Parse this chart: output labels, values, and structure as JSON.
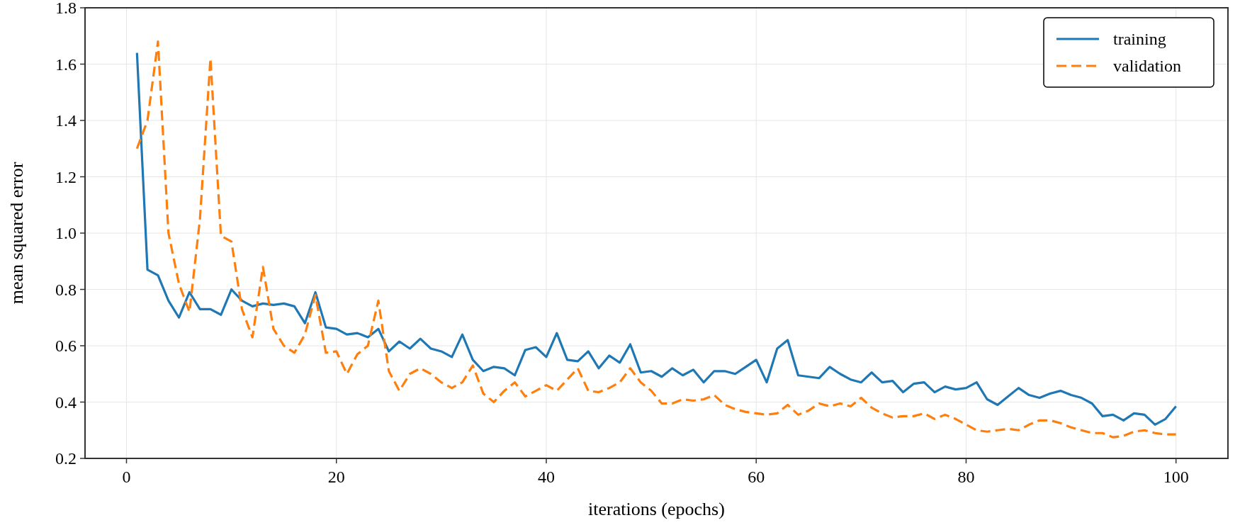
{
  "chart_data": {
    "type": "line",
    "xlabel": "iterations (epochs)",
    "ylabel": "mean squared error",
    "x": [
      1,
      2,
      3,
      4,
      5,
      6,
      7,
      8,
      9,
      10,
      11,
      12,
      13,
      14,
      15,
      16,
      17,
      18,
      19,
      20,
      21,
      22,
      23,
      24,
      25,
      26,
      27,
      28,
      29,
      30,
      31,
      32,
      33,
      34,
      35,
      36,
      37,
      38,
      39,
      40,
      41,
      42,
      43,
      44,
      45,
      46,
      47,
      48,
      49,
      50,
      51,
      52,
      53,
      54,
      55,
      56,
      57,
      58,
      59,
      60,
      61,
      62,
      63,
      64,
      65,
      66,
      67,
      68,
      69,
      70,
      71,
      72,
      73,
      74,
      75,
      76,
      77,
      78,
      79,
      80,
      81,
      82,
      83,
      84,
      85,
      86,
      87,
      88,
      89,
      90,
      91,
      92,
      93,
      94,
      95,
      96,
      97,
      98,
      99,
      100
    ],
    "series": [
      {
        "name": "training",
        "color": "#1f77b4",
        "line_style": "solid",
        "values": [
          1.64,
          0.87,
          0.85,
          0.76,
          0.7,
          0.79,
          0.73,
          0.73,
          0.71,
          0.8,
          0.76,
          0.74,
          0.75,
          0.745,
          0.75,
          0.74,
          0.68,
          0.79,
          0.665,
          0.66,
          0.64,
          0.645,
          0.63,
          0.66,
          0.58,
          0.615,
          0.59,
          0.625,
          0.59,
          0.58,
          0.56,
          0.64,
          0.55,
          0.51,
          0.525,
          0.52,
          0.495,
          0.585,
          0.595,
          0.56,
          0.645,
          0.55,
          0.545,
          0.58,
          0.52,
          0.565,
          0.54,
          0.605,
          0.505,
          0.51,
          0.49,
          0.52,
          0.495,
          0.515,
          0.47,
          0.51,
          0.51,
          0.5,
          0.525,
          0.55,
          0.47,
          0.59,
          0.62,
          0.495,
          0.49,
          0.485,
          0.525,
          0.5,
          0.48,
          0.47,
          0.505,
          0.47,
          0.475,
          0.435,
          0.465,
          0.47,
          0.435,
          0.455,
          0.445,
          0.45,
          0.47,
          0.41,
          0.39,
          0.42,
          0.45,
          0.425,
          0.415,
          0.43,
          0.44,
          0.425,
          0.415,
          0.395,
          0.35,
          0.355,
          0.335,
          0.36,
          0.355,
          0.32,
          0.34,
          0.385
        ]
      },
      {
        "name": "validation",
        "color": "#ff7f0e",
        "line_style": "dashed",
        "values": [
          1.3,
          1.4,
          1.68,
          1.0,
          0.82,
          0.72,
          1.05,
          1.62,
          0.99,
          0.97,
          0.73,
          0.63,
          0.88,
          0.66,
          0.6,
          0.575,
          0.64,
          0.78,
          0.575,
          0.58,
          0.5,
          0.57,
          0.6,
          0.76,
          0.51,
          0.44,
          0.5,
          0.52,
          0.5,
          0.47,
          0.45,
          0.47,
          0.53,
          0.43,
          0.4,
          0.44,
          0.47,
          0.42,
          0.44,
          0.46,
          0.44,
          0.48,
          0.52,
          0.44,
          0.435,
          0.45,
          0.47,
          0.52,
          0.47,
          0.44,
          0.395,
          0.395,
          0.41,
          0.405,
          0.41,
          0.425,
          0.39,
          0.375,
          0.365,
          0.36,
          0.355,
          0.36,
          0.39,
          0.355,
          0.37,
          0.395,
          0.385,
          0.395,
          0.385,
          0.415,
          0.38,
          0.36,
          0.345,
          0.35,
          0.35,
          0.36,
          0.34,
          0.355,
          0.34,
          0.32,
          0.3,
          0.295,
          0.3,
          0.305,
          0.3,
          0.32,
          0.335,
          0.335,
          0.325,
          0.31,
          0.3,
          0.29,
          0.29,
          0.275,
          0.28,
          0.295,
          0.3,
          0.29,
          0.285,
          0.285
        ]
      }
    ],
    "xlim": [
      -3.95,
      104.95
    ],
    "xticks": [
      0,
      20,
      40,
      60,
      80,
      100
    ],
    "ylim": [
      0.2,
      1.8
    ],
    "yticks": [
      {
        "value": 0.2,
        "label": "0.2"
      },
      {
        "value": 0.4,
        "label": "0.4"
      },
      {
        "value": 0.6,
        "label": "0.6"
      },
      {
        "value": 0.8,
        "label": "0.8"
      },
      {
        "value": 1.0,
        "label": "1.0"
      },
      {
        "value": 1.2,
        "label": "1.2"
      },
      {
        "value": 1.4,
        "label": "1.4"
      },
      {
        "value": 1.6,
        "label": "1.6"
      },
      {
        "value": 1.8,
        "label": "1.8"
      }
    ],
    "grid": true,
    "legend": "top right"
  }
}
